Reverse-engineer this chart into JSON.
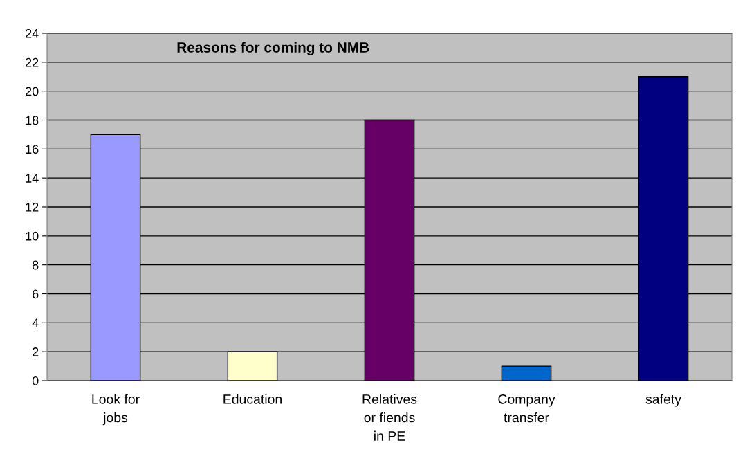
{
  "chart_data": {
    "type": "bar",
    "title": "Reasons for coming to NMB",
    "categories": [
      "Look for\njobs",
      "Education",
      "Relatives\nor fiends\nin PE",
      "Company\ntransfer",
      "safety"
    ],
    "values": [
      17,
      2,
      18,
      1,
      21
    ],
    "colors": [
      "#9999ff",
      "#ffffcc",
      "#660066",
      "#0066cc",
      "#000080"
    ],
    "ylim": [
      0,
      24
    ],
    "yticks": [
      0,
      2,
      4,
      6,
      8,
      10,
      12,
      14,
      16,
      18,
      20,
      22,
      24
    ],
    "grid": "y"
  }
}
